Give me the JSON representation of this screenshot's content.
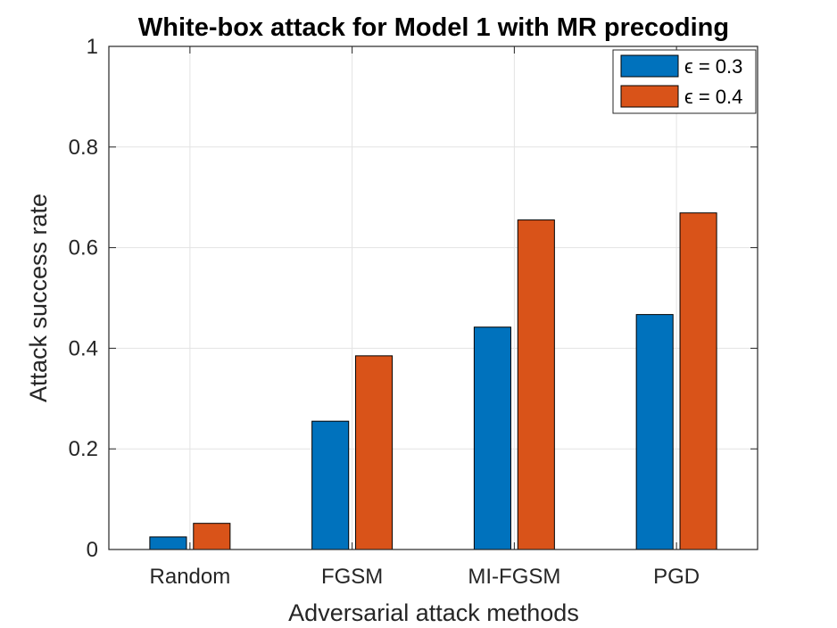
{
  "chart_data": {
    "type": "bar",
    "title": "White-box attack for Model 1 with MR precoding",
    "xlabel": "Adversarial attack methods",
    "ylabel": "Attack success rate",
    "categories": [
      "Random",
      "FGSM",
      "MI-FGSM",
      "PGD"
    ],
    "series": [
      {
        "name": "ϵ = 0.3",
        "color": "#0072BD",
        "values": [
          0.025,
          0.255,
          0.442,
          0.467
        ]
      },
      {
        "name": "ϵ = 0.4",
        "color": "#D95319",
        "values": [
          0.052,
          0.385,
          0.655,
          0.669
        ]
      }
    ],
    "ylim": [
      0,
      1
    ],
    "yticks": [
      0,
      0.2,
      0.4,
      0.6,
      0.8,
      1
    ],
    "ytick_labels": [
      "0",
      "0.2",
      "0.4",
      "0.6",
      "0.8",
      "1"
    ],
    "grid": true,
    "legend_position": "top-right"
  }
}
